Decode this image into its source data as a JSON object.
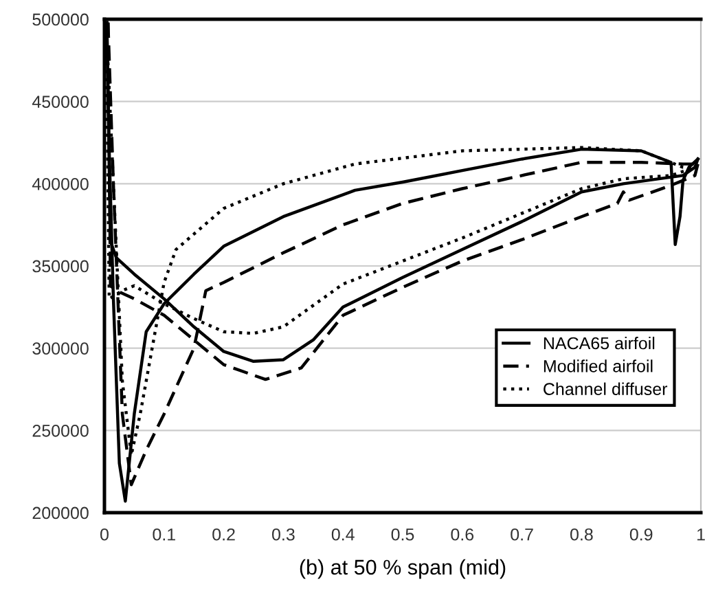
{
  "chart_data": {
    "type": "line",
    "xlabel": "(b) at 50 % span (mid)",
    "xlim": [
      0,
      1
    ],
    "xticks": [
      0,
      0.1,
      0.2,
      0.3,
      0.4,
      0.5,
      0.6,
      0.7,
      0.8,
      0.9,
      1
    ],
    "ylim": [
      200000,
      500000
    ],
    "yticks": [
      200000,
      250000,
      300000,
      350000,
      400000,
      450000,
      500000
    ],
    "grid": "y",
    "legend": "bottom right",
    "series": [
      {
        "name": "NACA65 airfoil",
        "color": "#000000",
        "line_style": "solid",
        "x": [
          0.004,
          0.01,
          0.02,
          0.05,
          0.1,
          0.15,
          0.2,
          0.25,
          0.3,
          0.35,
          0.4,
          0.5,
          0.6,
          0.7,
          0.8,
          0.87,
          0.93,
          0.97,
          0.99,
          0.995
        ],
        "values": [
          498000,
          365000,
          355000,
          345000,
          330000,
          313000,
          298000,
          292000,
          293000,
          305000,
          325000,
          343000,
          360000,
          377000,
          395000,
          400000,
          403000,
          405000,
          410000,
          415000
        ]
      },
      {
        "color": "#000000",
        "line_style": "solid",
        "x": [
          0.004,
          0.008,
          0.015,
          0.025,
          0.035,
          0.05,
          0.07,
          0.1,
          0.15,
          0.2,
          0.3,
          0.42,
          0.5,
          0.6,
          0.7,
          0.8,
          0.9,
          0.95,
          0.957,
          0.965,
          0.97,
          0.98,
          0.995
        ],
        "values": [
          498000,
          420000,
          330000,
          230000,
          207000,
          260000,
          310000,
          327000,
          345000,
          362000,
          380000,
          396000,
          401000,
          408000,
          415000,
          421000,
          420000,
          413000,
          363000,
          380000,
          402000,
          410000,
          415000
        ]
      },
      {
        "name": "Modified airfoil",
        "color": "#000000",
        "line_style": "dashed",
        "x": [
          0.006,
          0.01,
          0.02,
          0.05,
          0.1,
          0.15,
          0.2,
          0.27,
          0.33,
          0.4,
          0.5,
          0.6,
          0.7,
          0.8,
          0.86,
          0.87,
          0.88,
          0.95,
          0.99,
          0.995
        ],
        "values": [
          498000,
          338000,
          335000,
          330000,
          320000,
          305000,
          290000,
          281000,
          288000,
          320000,
          337000,
          353000,
          366000,
          380000,
          388000,
          395000,
          390000,
          399000,
          405000,
          412000
        ]
      },
      {
        "color": "#000000",
        "line_style": "dashed",
        "x": [
          0.006,
          0.015,
          0.03,
          0.045,
          0.07,
          0.1,
          0.15,
          0.17,
          0.2,
          0.3,
          0.4,
          0.5,
          0.6,
          0.7,
          0.8,
          0.9,
          0.97,
          0.995
        ],
        "values": [
          498000,
          400000,
          260000,
          217000,
          238000,
          260000,
          300000,
          335000,
          340000,
          358000,
          375000,
          388000,
          397000,
          405000,
          413000,
          413000,
          412000,
          412000
        ]
      },
      {
        "name": "Channel diffuser",
        "color": "#000000",
        "line_style": "dotted",
        "x": [
          0.003,
          0.008,
          0.03,
          0.05,
          0.1,
          0.15,
          0.2,
          0.25,
          0.3,
          0.4,
          0.5,
          0.6,
          0.7,
          0.8,
          0.87,
          0.95,
          0.99
        ],
        "values": [
          498000,
          330000,
          335000,
          338000,
          327000,
          318000,
          310000,
          309000,
          313000,
          339000,
          353000,
          367000,
          382000,
          397000,
          403000,
          405000,
          410000
        ]
      },
      {
        "color": "#000000",
        "line_style": "dotted",
        "x": [
          0.003,
          0.015,
          0.03,
          0.045,
          0.06,
          0.08,
          0.1,
          0.12,
          0.2,
          0.3,
          0.42,
          0.6,
          0.8,
          0.9,
          0.97,
          0.99
        ],
        "values": [
          498000,
          400000,
          280000,
          235000,
          260000,
          300000,
          340000,
          360000,
          385000,
          400000,
          412000,
          420000,
          422000,
          420000,
          410000,
          410000
        ]
      }
    ]
  }
}
